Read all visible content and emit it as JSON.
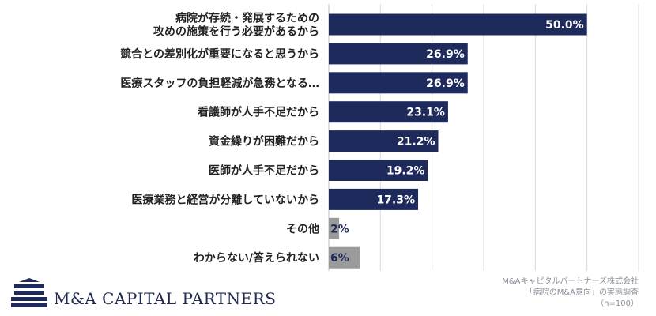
{
  "chart_data": {
    "type": "bar",
    "orientation": "horizontal",
    "categories": [
      [
        "病院が存続・発展するための",
        "攻めの施策を行う必要があるから"
      ],
      [
        "競合との差別化が重要になると思うから"
      ],
      [
        "医療スタッフの負担軽減が急務となる…"
      ],
      [
        "看護師が人手不足だから"
      ],
      [
        "資金繰りが困難だから"
      ],
      [
        "医師が人手不足だから"
      ],
      [
        "医療業務と経営が分離していないから"
      ],
      [
        "その他"
      ],
      [
        "わからない/答えられない"
      ]
    ],
    "values": [
      50.0,
      26.9,
      26.9,
      23.1,
      21.2,
      19.2,
      17.3,
      2,
      6
    ],
    "value_labels": [
      "50.0%",
      "26.9%",
      "26.9%",
      "23.1%",
      "21.2%",
      "19.2%",
      "17.3%",
      "2%",
      "6%"
    ],
    "bar_colors": [
      "#1f2a5c",
      "#1f2a5c",
      "#1f2a5c",
      "#1f2a5c",
      "#1f2a5c",
      "#1f2a5c",
      "#1f2a5c",
      "#9a9a9a",
      "#9a9a9a"
    ],
    "value_label_colors": [
      "#ffffff",
      "#ffffff",
      "#ffffff",
      "#ffffff",
      "#ffffff",
      "#ffffff",
      "#ffffff",
      "#1f2a5c",
      "#1f2a5c"
    ],
    "xlim": [
      0,
      60
    ],
    "grid": true
  },
  "footer": {
    "logo_text": "M&A CAPITAL PARTNERS",
    "source_lines": [
      "M&Aキャピタルパートナーズ株式会社",
      "「病院のM&A意向」の実態調査",
      "（n=100）"
    ]
  },
  "colors": {
    "brand": "#1f2a5c",
    "other": "#9a9a9a",
    "grid": "#d9d9d9"
  }
}
